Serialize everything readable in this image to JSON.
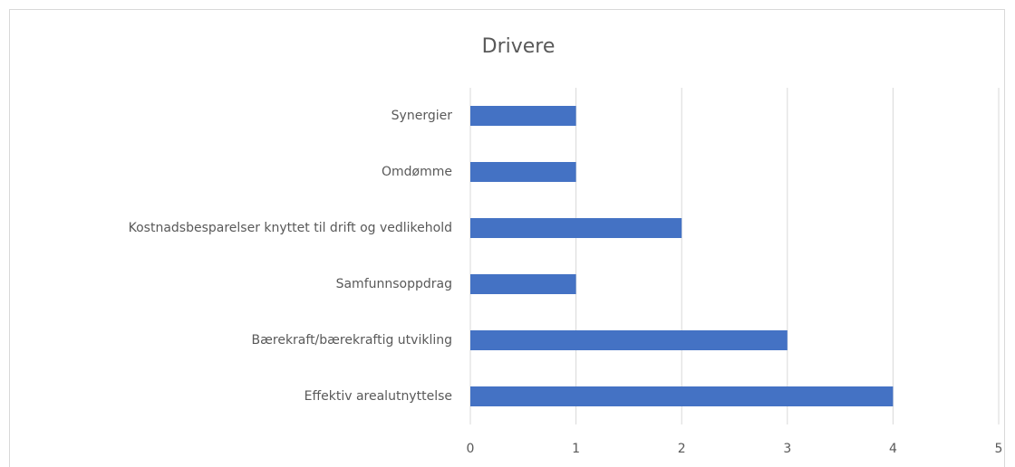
{
  "chart_data": {
    "type": "bar",
    "orientation": "horizontal",
    "title": "Drivere",
    "categories": [
      "Synergier",
      "Omdømme",
      "Kostnadsbesparelser knyttet til drift og vedlikehold",
      "Samfunnsoppdrag",
      "Bærekraft/bærekraftig utvikling",
      "Effektiv arealutnyttelse"
    ],
    "values": [
      1,
      1,
      2,
      1,
      3,
      4
    ],
    "color": "#4472c4",
    "xlim": [
      0,
      5
    ],
    "xticks": [
      0,
      1,
      2,
      3,
      4,
      5
    ],
    "grid": true
  }
}
